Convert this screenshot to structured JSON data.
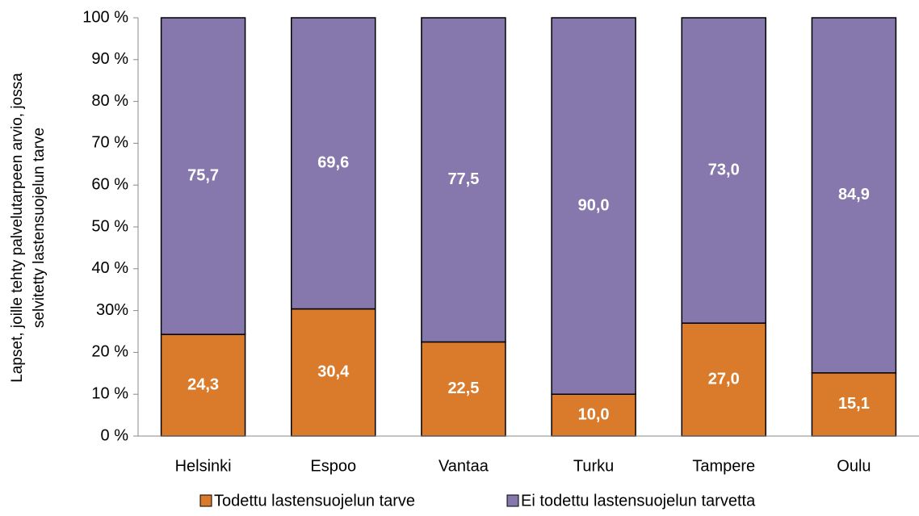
{
  "chart_data": {
    "type": "stacked_bar",
    "ylabel": [
      "Lapset, joille tehty palvelutarpeen arvio, jossa",
      "selvitetty lastensuojelun tarve"
    ],
    "categories": [
      "Helsinki",
      "Espoo",
      "Vantaa",
      "Turku",
      "Tampere",
      "Oulu"
    ],
    "series": [
      {
        "name": "Todettu lastensuojelun tarve",
        "color": "#d97b2a",
        "values": [
          24.3,
          30.4,
          22.5,
          10,
          27,
          15.1
        ],
        "value_labels": [
          "24,3",
          "30,4",
          "22,5",
          "10,0",
          "27,0",
          "15,1"
        ]
      },
      {
        "name": "Ei todettu lastensuojelun tarvetta",
        "color": "#8677ad",
        "values": [
          75.7,
          69.6,
          77.5,
          90,
          73,
          84.9
        ],
        "value_labels": [
          "75,7",
          "69,6",
          "77,5",
          "90,0",
          "73,0",
          "84,9"
        ]
      }
    ],
    "ylim": [
      0,
      100
    ],
    "yticks": [
      {
        "value": 0,
        "label": "0 %"
      },
      {
        "value": 10,
        "label": "10 %"
      },
      {
        "value": 20,
        "label": "20 %"
      },
      {
        "value": 30,
        "label": "30%"
      },
      {
        "value": 40,
        "label": "40 %"
      },
      {
        "value": 50,
        "label": "50 %"
      },
      {
        "value": 60,
        "label": "60 %"
      },
      {
        "value": 70,
        "label": "70 %"
      },
      {
        "value": 80,
        "label": "80 %"
      },
      {
        "value": 90,
        "label": "90 %"
      },
      {
        "value": 100,
        "label": "100 %"
      }
    ],
    "grid": false,
    "legend": "bottom"
  }
}
